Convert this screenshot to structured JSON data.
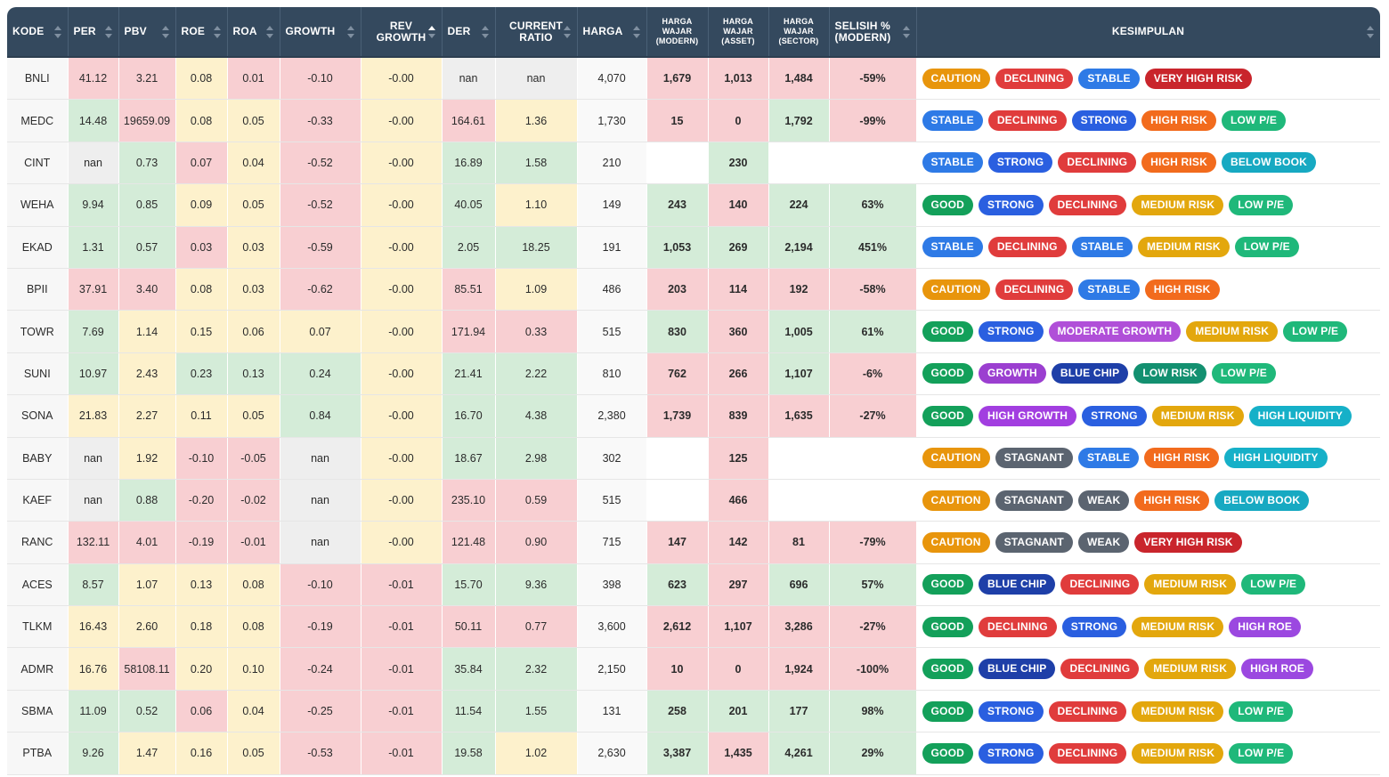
{
  "headers": {
    "kode": "KODE",
    "per": "PER",
    "pbv": "PBV",
    "roe": "ROE",
    "roa": "ROA",
    "growth": "GROWTH",
    "rev_growth": "REV GROWTH",
    "der": "DER",
    "current_ratio": "CURRENT RATIO",
    "harga": "HARGA",
    "hw_modern": "HARGA WAJAR (MODERN)",
    "hw_asset": "HARGA WAJAR (ASSET)",
    "hw_sector": "HARGA WAJAR (SECTOR)",
    "selisih": "SELISIH % (MODERN)",
    "kesimpulan": "KESIMPULAN"
  },
  "badge_colors": {
    "CAUTION": "#e8950c",
    "DECLINING": "#e03c3c",
    "STABLE": "#2e7ae6",
    "VERY HIGH RISK": "#c9252c",
    "STRONG": "#2a5fe0",
    "HIGH RISK": "#f26b1d",
    "LOW P/E": "#1fb87a",
    "BELOW BOOK": "#17a9c2",
    "GOOD": "#13a05a",
    "MEDIUM RISK": "#e3a70d",
    "MODERATE GROWTH": "#b04fd8",
    "GROWTH": "#9b3fd0",
    "BLUE CHIP": "#1e3fa8",
    "LOW RISK": "#139070",
    "HIGH GROWTH": "#a23ee0",
    "HIGH LIQUIDITY": "#16b0c8",
    "STAGNANT": "#5b6470",
    "WEAK": "#5b6470",
    "HIGH ROE": "#9b48e0"
  },
  "rows": [
    {
      "kode": "BNLI",
      "per": [
        "41.12",
        "r"
      ],
      "pbv": [
        "3.21",
        "r"
      ],
      "roe": [
        "0.08",
        "y"
      ],
      "roa": [
        "0.01",
        "r"
      ],
      "growth": [
        "-0.10",
        "r"
      ],
      "rev": [
        "-0.00",
        "y"
      ],
      "der": [
        "nan",
        "n"
      ],
      "cr": [
        "nan",
        "n"
      ],
      "harga": "4,070",
      "hm": [
        "1,679",
        "r"
      ],
      "ha": [
        "1,013",
        "r"
      ],
      "hs": [
        "1,484",
        "r"
      ],
      "sel": [
        "-59%",
        "r"
      ],
      "kes": [
        "CAUTION",
        "DECLINING",
        "STABLE",
        "VERY HIGH RISK"
      ]
    },
    {
      "kode": "MEDC",
      "per": [
        "14.48",
        "g"
      ],
      "pbv": [
        "19659.09",
        "r"
      ],
      "roe": [
        "0.08",
        "y"
      ],
      "roa": [
        "0.05",
        "y"
      ],
      "growth": [
        "-0.33",
        "r"
      ],
      "rev": [
        "-0.00",
        "y"
      ],
      "der": [
        "164.61",
        "r"
      ],
      "cr": [
        "1.36",
        "y"
      ],
      "harga": "1,730",
      "hm": [
        "15",
        "r"
      ],
      "ha": [
        "0",
        "r"
      ],
      "hs": [
        "1,792",
        "g"
      ],
      "sel": [
        "-99%",
        "r"
      ],
      "kes": [
        "STABLE",
        "DECLINING",
        "STRONG",
        "HIGH RISK",
        "LOW P/E"
      ]
    },
    {
      "kode": "CINT",
      "per": [
        "nan",
        "n"
      ],
      "pbv": [
        "0.73",
        "g"
      ],
      "roe": [
        "0.07",
        "r"
      ],
      "roa": [
        "0.04",
        "y"
      ],
      "growth": [
        "-0.52",
        "r"
      ],
      "rev": [
        "-0.00",
        "y"
      ],
      "der": [
        "16.89",
        "g"
      ],
      "cr": [
        "1.58",
        "g"
      ],
      "harga": "210",
      "hm": [
        "",
        "w"
      ],
      "ha": [
        "230",
        "g"
      ],
      "hs": [
        "",
        "w"
      ],
      "sel": [
        "",
        "w"
      ],
      "kes": [
        "STABLE",
        "STRONG",
        "DECLINING",
        "HIGH RISK",
        "BELOW BOOK"
      ]
    },
    {
      "kode": "WEHA",
      "per": [
        "9.94",
        "g"
      ],
      "pbv": [
        "0.85",
        "g"
      ],
      "roe": [
        "0.09",
        "y"
      ],
      "roa": [
        "0.05",
        "y"
      ],
      "growth": [
        "-0.52",
        "r"
      ],
      "rev": [
        "-0.00",
        "y"
      ],
      "der": [
        "40.05",
        "g"
      ],
      "cr": [
        "1.10",
        "y"
      ],
      "harga": "149",
      "hm": [
        "243",
        "g"
      ],
      "ha": [
        "140",
        "r"
      ],
      "hs": [
        "224",
        "g"
      ],
      "sel": [
        "63%",
        "g"
      ],
      "kes": [
        "GOOD",
        "STRONG",
        "DECLINING",
        "MEDIUM RISK",
        "LOW P/E"
      ]
    },
    {
      "kode": "EKAD",
      "per": [
        "1.31",
        "g"
      ],
      "pbv": [
        "0.57",
        "g"
      ],
      "roe": [
        "0.03",
        "r"
      ],
      "roa": [
        "0.03",
        "y"
      ],
      "growth": [
        "-0.59",
        "r"
      ],
      "rev": [
        "-0.00",
        "y"
      ],
      "der": [
        "2.05",
        "g"
      ],
      "cr": [
        "18.25",
        "g"
      ],
      "harga": "191",
      "hm": [
        "1,053",
        "g"
      ],
      "ha": [
        "269",
        "g"
      ],
      "hs": [
        "2,194",
        "g"
      ],
      "sel": [
        "451%",
        "g"
      ],
      "kes": [
        "STABLE",
        "DECLINING",
        "STABLE",
        "MEDIUM RISK",
        "LOW P/E"
      ]
    },
    {
      "kode": "BPII",
      "per": [
        "37.91",
        "r"
      ],
      "pbv": [
        "3.40",
        "r"
      ],
      "roe": [
        "0.08",
        "y"
      ],
      "roa": [
        "0.03",
        "y"
      ],
      "growth": [
        "-0.62",
        "r"
      ],
      "rev": [
        "-0.00",
        "y"
      ],
      "der": [
        "85.51",
        "r"
      ],
      "cr": [
        "1.09",
        "y"
      ],
      "harga": "486",
      "hm": [
        "203",
        "r"
      ],
      "ha": [
        "114",
        "r"
      ],
      "hs": [
        "192",
        "r"
      ],
      "sel": [
        "-58%",
        "r"
      ],
      "kes": [
        "CAUTION",
        "DECLINING",
        "STABLE",
        "HIGH RISK"
      ]
    },
    {
      "kode": "TOWR",
      "per": [
        "7.69",
        "g"
      ],
      "pbv": [
        "1.14",
        "y"
      ],
      "roe": [
        "0.15",
        "y"
      ],
      "roa": [
        "0.06",
        "y"
      ],
      "growth": [
        "0.07",
        "y"
      ],
      "rev": [
        "-0.00",
        "y"
      ],
      "der": [
        "171.94",
        "r"
      ],
      "cr": [
        "0.33",
        "r"
      ],
      "harga": "515",
      "hm": [
        "830",
        "g"
      ],
      "ha": [
        "360",
        "r"
      ],
      "hs": [
        "1,005",
        "g"
      ],
      "sel": [
        "61%",
        "g"
      ],
      "kes": [
        "GOOD",
        "STRONG",
        "MODERATE GROWTH",
        "MEDIUM RISK",
        "LOW P/E"
      ]
    },
    {
      "kode": "SUNI",
      "per": [
        "10.97",
        "g"
      ],
      "pbv": [
        "2.43",
        "y"
      ],
      "roe": [
        "0.23",
        "g"
      ],
      "roa": [
        "0.13",
        "g"
      ],
      "growth": [
        "0.24",
        "g"
      ],
      "rev": [
        "-0.00",
        "y"
      ],
      "der": [
        "21.41",
        "g"
      ],
      "cr": [
        "2.22",
        "g"
      ],
      "harga": "810",
      "hm": [
        "762",
        "r"
      ],
      "ha": [
        "266",
        "r"
      ],
      "hs": [
        "1,107",
        "g"
      ],
      "sel": [
        "-6%",
        "r"
      ],
      "kes": [
        "GOOD",
        "GROWTH",
        "BLUE CHIP",
        "LOW RISK",
        "LOW P/E"
      ]
    },
    {
      "kode": "SONA",
      "per": [
        "21.83",
        "y"
      ],
      "pbv": [
        "2.27",
        "y"
      ],
      "roe": [
        "0.11",
        "y"
      ],
      "roa": [
        "0.05",
        "y"
      ],
      "growth": [
        "0.84",
        "g"
      ],
      "rev": [
        "-0.00",
        "y"
      ],
      "der": [
        "16.70",
        "g"
      ],
      "cr": [
        "4.38",
        "g"
      ],
      "harga": "2,380",
      "hm": [
        "1,739",
        "r"
      ],
      "ha": [
        "839",
        "r"
      ],
      "hs": [
        "1,635",
        "r"
      ],
      "sel": [
        "-27%",
        "r"
      ],
      "kes": [
        "GOOD",
        "HIGH GROWTH",
        "STRONG",
        "MEDIUM RISK",
        "HIGH LIQUIDITY"
      ]
    },
    {
      "kode": "BABY",
      "per": [
        "nan",
        "n"
      ],
      "pbv": [
        "1.92",
        "y"
      ],
      "roe": [
        "-0.10",
        "r"
      ],
      "roa": [
        "-0.05",
        "r"
      ],
      "growth": [
        "nan",
        "n"
      ],
      "rev": [
        "-0.00",
        "y"
      ],
      "der": [
        "18.67",
        "g"
      ],
      "cr": [
        "2.98",
        "g"
      ],
      "harga": "302",
      "hm": [
        "",
        "w"
      ],
      "ha": [
        "125",
        "r"
      ],
      "hs": [
        "",
        "w"
      ],
      "sel": [
        "",
        "w"
      ],
      "kes": [
        "CAUTION",
        "STAGNANT",
        "STABLE",
        "HIGH RISK",
        "HIGH LIQUIDITY"
      ]
    },
    {
      "kode": "KAEF",
      "per": [
        "nan",
        "n"
      ],
      "pbv": [
        "0.88",
        "g"
      ],
      "roe": [
        "-0.20",
        "r"
      ],
      "roa": [
        "-0.02",
        "r"
      ],
      "growth": [
        "nan",
        "n"
      ],
      "rev": [
        "-0.00",
        "y"
      ],
      "der": [
        "235.10",
        "r"
      ],
      "cr": [
        "0.59",
        "r"
      ],
      "harga": "515",
      "hm": [
        "",
        "w"
      ],
      "ha": [
        "466",
        "r"
      ],
      "hs": [
        "",
        "w"
      ],
      "sel": [
        "",
        "w"
      ],
      "kes": [
        "CAUTION",
        "STAGNANT",
        "WEAK",
        "HIGH RISK",
        "BELOW BOOK"
      ]
    },
    {
      "kode": "RANC",
      "per": [
        "132.11",
        "r"
      ],
      "pbv": [
        "4.01",
        "r"
      ],
      "roe": [
        "-0.19",
        "r"
      ],
      "roa": [
        "-0.01",
        "r"
      ],
      "growth": [
        "nan",
        "n"
      ],
      "rev": [
        "-0.00",
        "y"
      ],
      "der": [
        "121.48",
        "r"
      ],
      "cr": [
        "0.90",
        "r"
      ],
      "harga": "715",
      "hm": [
        "147",
        "r"
      ],
      "ha": [
        "142",
        "r"
      ],
      "hs": [
        "81",
        "r"
      ],
      "sel": [
        "-79%",
        "r"
      ],
      "kes": [
        "CAUTION",
        "STAGNANT",
        "WEAK",
        "VERY HIGH RISK"
      ]
    },
    {
      "kode": "ACES",
      "per": [
        "8.57",
        "g"
      ],
      "pbv": [
        "1.07",
        "y"
      ],
      "roe": [
        "0.13",
        "y"
      ],
      "roa": [
        "0.08",
        "y"
      ],
      "growth": [
        "-0.10",
        "r"
      ],
      "rev": [
        "-0.01",
        "r"
      ],
      "der": [
        "15.70",
        "g"
      ],
      "cr": [
        "9.36",
        "g"
      ],
      "harga": "398",
      "hm": [
        "623",
        "g"
      ],
      "ha": [
        "297",
        "r"
      ],
      "hs": [
        "696",
        "g"
      ],
      "sel": [
        "57%",
        "g"
      ],
      "kes": [
        "GOOD",
        "BLUE CHIP",
        "DECLINING",
        "MEDIUM RISK",
        "LOW P/E"
      ]
    },
    {
      "kode": "TLKM",
      "per": [
        "16.43",
        "y"
      ],
      "pbv": [
        "2.60",
        "y"
      ],
      "roe": [
        "0.18",
        "y"
      ],
      "roa": [
        "0.08",
        "y"
      ],
      "growth": [
        "-0.19",
        "r"
      ],
      "rev": [
        "-0.01",
        "r"
      ],
      "der": [
        "50.11",
        "r"
      ],
      "cr": [
        "0.77",
        "r"
      ],
      "harga": "3,600",
      "hm": [
        "2,612",
        "r"
      ],
      "ha": [
        "1,107",
        "r"
      ],
      "hs": [
        "3,286",
        "r"
      ],
      "sel": [
        "-27%",
        "r"
      ],
      "kes": [
        "GOOD",
        "DECLINING",
        "STRONG",
        "MEDIUM RISK",
        "HIGH ROE"
      ]
    },
    {
      "kode": "ADMR",
      "per": [
        "16.76",
        "y"
      ],
      "pbv": [
        "58108.11",
        "r"
      ],
      "roe": [
        "0.20",
        "y"
      ],
      "roa": [
        "0.10",
        "y"
      ],
      "growth": [
        "-0.24",
        "r"
      ],
      "rev": [
        "-0.01",
        "r"
      ],
      "der": [
        "35.84",
        "g"
      ],
      "cr": [
        "2.32",
        "g"
      ],
      "harga": "2,150",
      "hm": [
        "10",
        "r"
      ],
      "ha": [
        "0",
        "r"
      ],
      "hs": [
        "1,924",
        "r"
      ],
      "sel": [
        "-100%",
        "r"
      ],
      "kes": [
        "GOOD",
        "BLUE CHIP",
        "DECLINING",
        "MEDIUM RISK",
        "HIGH ROE"
      ]
    },
    {
      "kode": "SBMA",
      "per": [
        "11.09",
        "g"
      ],
      "pbv": [
        "0.52",
        "g"
      ],
      "roe": [
        "0.06",
        "r"
      ],
      "roa": [
        "0.04",
        "y"
      ],
      "growth": [
        "-0.25",
        "r"
      ],
      "rev": [
        "-0.01",
        "r"
      ],
      "der": [
        "11.54",
        "g"
      ],
      "cr": [
        "1.55",
        "g"
      ],
      "harga": "131",
      "hm": [
        "258",
        "g"
      ],
      "ha": [
        "201",
        "g"
      ],
      "hs": [
        "177",
        "g"
      ],
      "sel": [
        "98%",
        "g"
      ],
      "kes": [
        "GOOD",
        "STRONG",
        "DECLINING",
        "MEDIUM RISK",
        "LOW P/E"
      ]
    },
    {
      "kode": "PTBA",
      "per": [
        "9.26",
        "g"
      ],
      "pbv": [
        "1.47",
        "y"
      ],
      "roe": [
        "0.16",
        "y"
      ],
      "roa": [
        "0.05",
        "y"
      ],
      "growth": [
        "-0.53",
        "r"
      ],
      "rev": [
        "-0.01",
        "r"
      ],
      "der": [
        "19.58",
        "g"
      ],
      "cr": [
        "1.02",
        "y"
      ],
      "harga": "2,630",
      "hm": [
        "3,387",
        "g"
      ],
      "ha": [
        "1,435",
        "r"
      ],
      "hs": [
        "4,261",
        "g"
      ],
      "sel": [
        "29%",
        "g"
      ],
      "kes": [
        "GOOD",
        "STRONG",
        "DECLINING",
        "MEDIUM RISK",
        "LOW P/E"
      ]
    }
  ]
}
